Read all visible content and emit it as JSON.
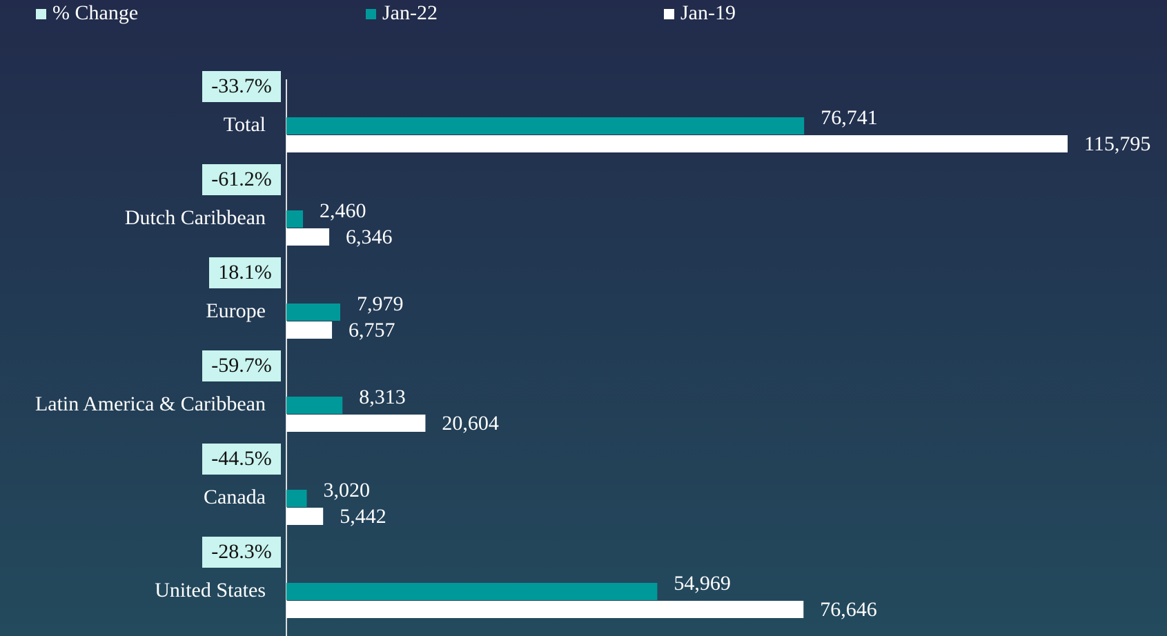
{
  "chart_data": {
    "type": "bar",
    "orientation": "horizontal",
    "categories": [
      "Total",
      "Dutch Caribbean",
      "Europe",
      "Latin America & Caribbean",
      "Canada",
      "United States"
    ],
    "series": [
      {
        "name": "% Change",
        "color": "#c9f4ef",
        "values": [
          -33.7,
          -61.2,
          18.1,
          -59.7,
          -44.5,
          -28.3
        ],
        "value_labels": [
          "-33.7%",
          "-61.2%",
          "18.1%",
          "-59.7%",
          "-44.5%",
          "-28.3%"
        ]
      },
      {
        "name": "Jan-22",
        "color": "#009999",
        "values": [
          76741,
          2460,
          7979,
          8313,
          3020,
          54969
        ],
        "value_labels": [
          "76,741",
          "2,460",
          "7,979",
          "8,313",
          "3,020",
          "54,969"
        ]
      },
      {
        "name": "Jan-19",
        "color": "#ffffff",
        "values": [
          115795,
          6346,
          6757,
          20604,
          5442,
          76646
        ],
        "value_labels": [
          "115,795",
          "6,346",
          "6,757",
          "20,604",
          "5,442",
          "76,646"
        ]
      }
    ],
    "legend": "top"
  }
}
